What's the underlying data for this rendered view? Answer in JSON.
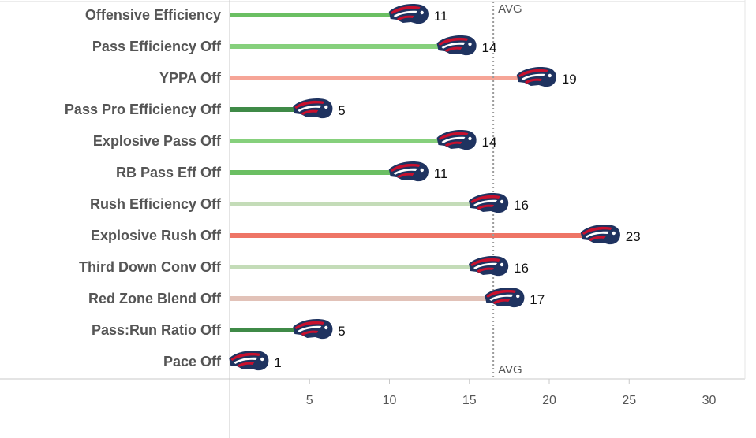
{
  "chart_data": {
    "type": "bar",
    "orientation": "horizontal",
    "categories": [
      "Offensive Efficiency",
      "Pass Efficiency Off",
      "YPPA Off",
      "Pass Pro Efficiency Off",
      "Explosive Pass Off",
      "RB Pass Eff Off",
      "Rush Efficiency Off",
      "Explosive Rush Off",
      "Third Down Conv Off",
      "Red Zone Blend Off",
      "Pass:Run Ratio Off",
      "Pace Off"
    ],
    "values": [
      11,
      14,
      19,
      5,
      14,
      11,
      16,
      23,
      16,
      17,
      5,
      1
    ],
    "bar_colors": [
      "#6bbf63",
      "#86d07c",
      "#f6a597",
      "#3f8a47",
      "#86d07c",
      "#6bbf63",
      "#c4dcb8",
      "#ee7566",
      "#c4dcb8",
      "#e2c2b8",
      "#3f8a47",
      "#3f8a47"
    ],
    "average": {
      "value": 16.5,
      "label": "AVG"
    },
    "xlim": [
      0,
      33
    ],
    "xticks": [
      5,
      10,
      15,
      20,
      25,
      30
    ],
    "xlabel": "",
    "ylabel": "",
    "title": "",
    "marker_icon": "patriots-logo-icon"
  }
}
